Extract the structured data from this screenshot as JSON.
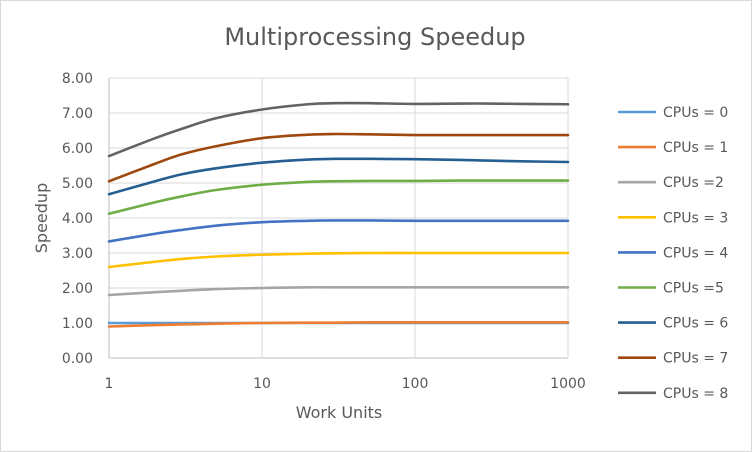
{
  "chart_data": {
    "type": "line",
    "title": "Multiprocessing Speedup",
    "xlabel": "Work Units",
    "ylabel": "Speedup",
    "xscale": "log",
    "xlim": [
      1,
      1000
    ],
    "ylim": [
      0,
      8
    ],
    "x_ticks": [
      "1",
      "10",
      "100",
      "1000"
    ],
    "y_ticks": [
      "0.00",
      "1.00",
      "2.00",
      "3.00",
      "4.00",
      "5.00",
      "6.00",
      "7.00",
      "8.00"
    ],
    "grid": true,
    "legend_position": "right",
    "x": [
      1,
      2,
      3,
      5,
      10,
      20,
      30,
      50,
      100,
      200,
      300,
      500,
      1000
    ],
    "series": [
      {
        "name": "CPUs = 0",
        "color": "#5b9bd5",
        "values": [
          1.0,
          1.0,
          1.0,
          1.0,
          1.0,
          1.0,
          1.0,
          1.0,
          1.0,
          1.0,
          1.0,
          1.0,
          1.0
        ]
      },
      {
        "name": "CPUs = 1",
        "color": "#ed7d31",
        "values": [
          0.9,
          0.94,
          0.96,
          0.98,
          1.0,
          1.01,
          1.01,
          1.02,
          1.02,
          1.02,
          1.02,
          1.02,
          1.02
        ]
      },
      {
        "name": "CPUs =2",
        "color": "#a5a5a5",
        "values": [
          1.8,
          1.88,
          1.92,
          1.97,
          2.0,
          2.02,
          2.02,
          2.02,
          2.02,
          2.02,
          2.02,
          2.02,
          2.02
        ]
      },
      {
        "name": "CPUs = 3",
        "color": "#ffc000",
        "values": [
          2.6,
          2.75,
          2.83,
          2.9,
          2.95,
          2.98,
          2.99,
          3.0,
          3.0,
          3.0,
          3.0,
          3.0,
          3.0
        ]
      },
      {
        "name": "CPUs = 4",
        "color": "#4472c4",
        "values": [
          3.33,
          3.55,
          3.66,
          3.78,
          3.88,
          3.92,
          3.93,
          3.93,
          3.92,
          3.92,
          3.92,
          3.92,
          3.92
        ]
      },
      {
        "name": "CPUs =5",
        "color": "#70ad47",
        "values": [
          4.12,
          4.45,
          4.62,
          4.8,
          4.95,
          5.03,
          5.05,
          5.06,
          5.06,
          5.07,
          5.07,
          5.07,
          5.07
        ]
      },
      {
        "name": "CPUs = 6",
        "color": "#255e91",
        "values": [
          4.68,
          5.05,
          5.25,
          5.42,
          5.58,
          5.67,
          5.69,
          5.69,
          5.68,
          5.66,
          5.64,
          5.62,
          5.6
        ]
      },
      {
        "name": "CPUs = 7",
        "color": "#9e480e",
        "values": [
          5.05,
          5.55,
          5.82,
          6.05,
          6.28,
          6.38,
          6.4,
          6.39,
          6.37,
          6.37,
          6.37,
          6.37,
          6.37
        ]
      },
      {
        "name": "CPUs = 8",
        "color": "#636363",
        "values": [
          5.77,
          6.28,
          6.55,
          6.85,
          7.1,
          7.25,
          7.28,
          7.28,
          7.26,
          7.27,
          7.27,
          7.26,
          7.25
        ]
      }
    ]
  }
}
